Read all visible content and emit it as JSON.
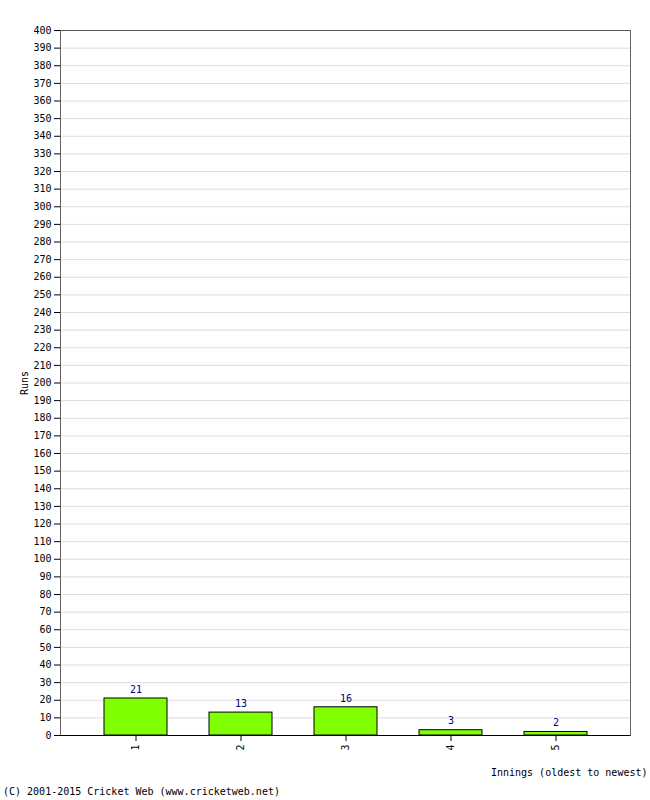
{
  "chart_data": {
    "type": "bar",
    "categories": [
      "1",
      "2",
      "3",
      "4",
      "5"
    ],
    "values": [
      21,
      13,
      16,
      3,
      2
    ],
    "color": "#80ff00",
    "xlabel": "Innings (oldest to newest)",
    "ylabel": "Runs",
    "caption": "(C) 2001-2015 Cricket Web (www.cricketweb.net)",
    "ylim": [
      0,
      400
    ],
    "yticks": [
      0,
      10,
      20,
      30,
      40,
      50,
      60,
      70,
      80,
      90,
      100,
      110,
      120,
      130,
      140,
      150,
      160,
      170,
      180,
      190,
      200,
      210,
      220,
      230,
      240,
      250,
      260,
      270,
      280,
      290,
      300,
      310,
      320,
      330,
      340,
      350,
      360,
      370,
      380,
      390,
      400
    ],
    "grid": true,
    "data_labels": true
  }
}
